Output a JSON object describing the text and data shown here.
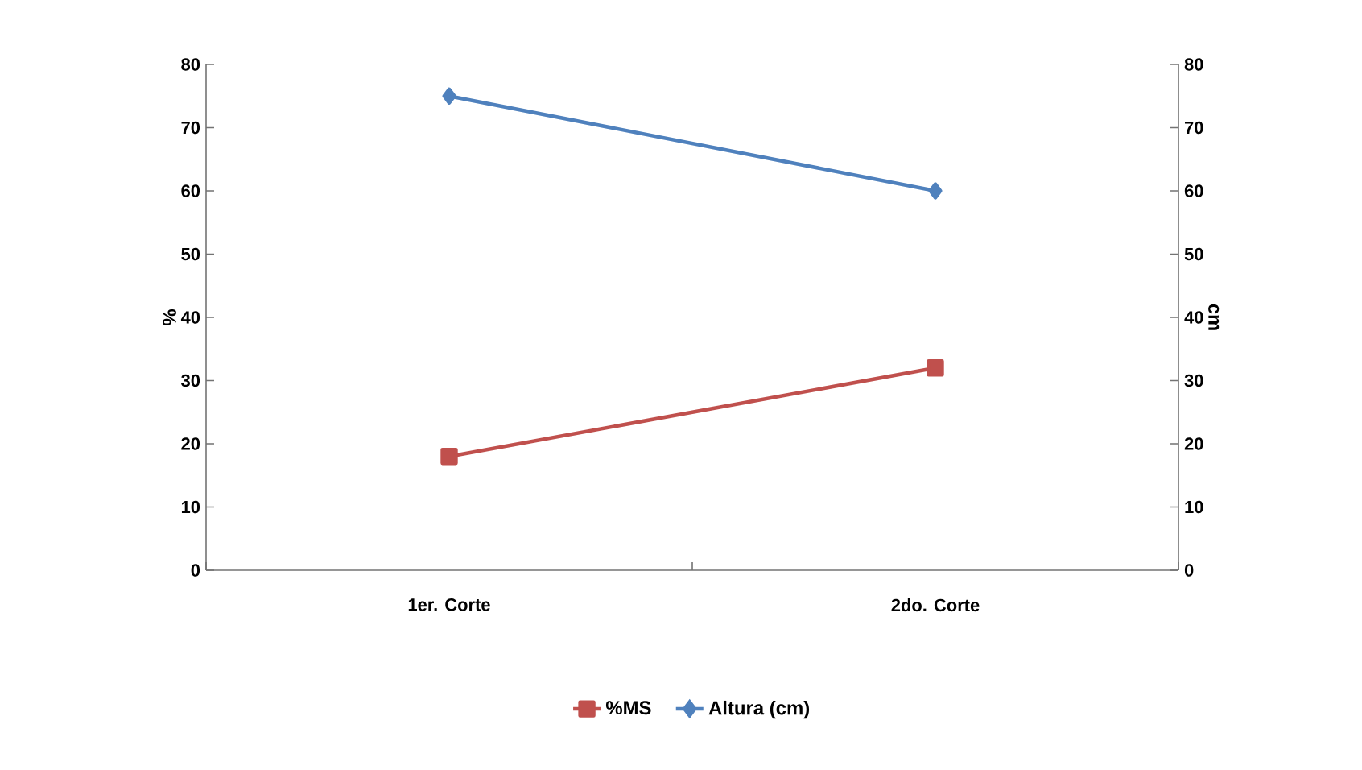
{
  "chart_data": {
    "type": "line",
    "categories": [
      "1er. Corte",
      "2do. Corte"
    ],
    "series": [
      {
        "name": "%MS",
        "color": "#c0504d",
        "values": [
          18,
          32
        ],
        "axis": "y",
        "marker": "square"
      },
      {
        "name": "Altura (cm)",
        "color": "#4f81bd",
        "values": [
          75,
          60
        ],
        "axis": "y2",
        "marker": "diamond"
      }
    ],
    "ylabel": "%",
    "y2label": "cm",
    "ylim": [
      0,
      80
    ],
    "yticks": [
      0,
      10,
      20,
      30,
      40,
      50,
      60,
      70,
      80
    ],
    "y2lim": [
      0,
      80
    ],
    "y2ticks": [
      0,
      10,
      20,
      30,
      40,
      50,
      60,
      70,
      80
    ],
    "legend": "bottom",
    "grid": false,
    "line_style": "solid"
  }
}
